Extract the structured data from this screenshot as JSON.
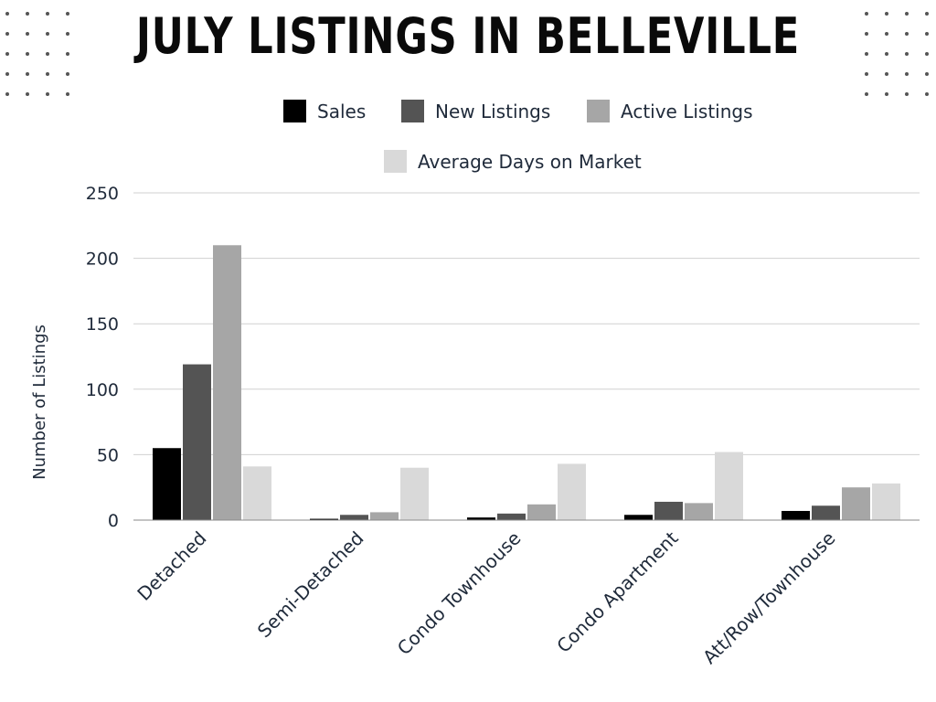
{
  "decor": {
    "dot_color": "#555555"
  },
  "chart_data": {
    "type": "bar",
    "title": "JULY LISTINGS IN BELLEVILLE",
    "xlabel": "",
    "ylabel": "Number of Listings",
    "ylim": [
      0,
      250
    ],
    "yticks": [
      0,
      50,
      100,
      150,
      200,
      250
    ],
    "grid": true,
    "legend_position": "top",
    "categories": [
      "Detached",
      "Semi-Detached",
      "Condo Townhouse",
      "Condo Apartment",
      "Att/Row/Townhouse"
    ],
    "series": [
      {
        "name": "Sales",
        "color": "#000000",
        "values": [
          55,
          1,
          2,
          4,
          7
        ]
      },
      {
        "name": "New Listings",
        "color": "#545454",
        "values": [
          119,
          4,
          5,
          14,
          11
        ]
      },
      {
        "name": "Active Listings",
        "color": "#a6a6a6",
        "values": [
          210,
          6,
          12,
          13,
          25
        ]
      },
      {
        "name": "Average Days on Market",
        "color": "#d9d9d9",
        "values": [
          41,
          40,
          43,
          52,
          28
        ]
      }
    ]
  }
}
